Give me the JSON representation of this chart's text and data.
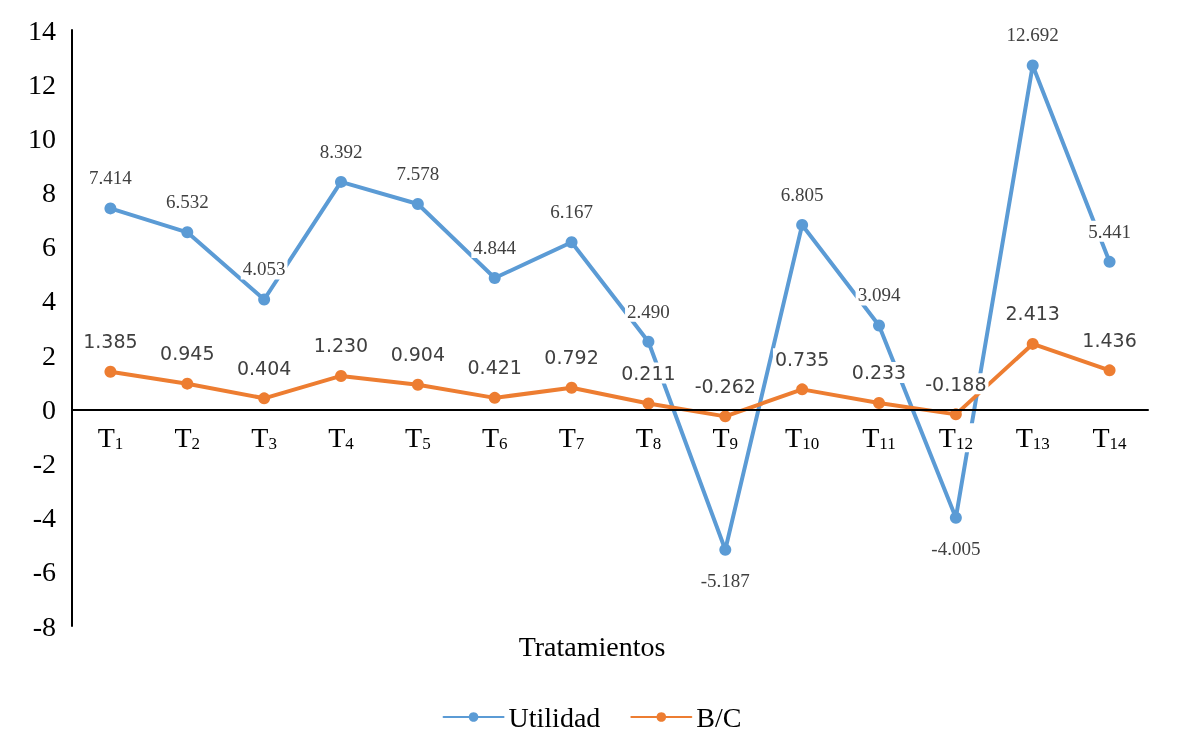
{
  "chart_data": {
    "type": "line",
    "xlabel": "Tratamientos",
    "categories": [
      "T$_{1}$",
      "T$_{2}$",
      "T$_{3}$",
      "T$_{4}$",
      "T$_{5}$",
      "T$_{6}$",
      "T$_{7}$",
      "T$_{8}$",
      "T$_{9}$",
      "T$_{10}$",
      "T$_{11}$",
      "T$_{12}$",
      "T$_{13}$",
      "T$_{14}$"
    ],
    "series": [
      {
        "name": "Utilidad",
        "color": "#5b9bd5",
        "values": [
          7.414,
          6.532,
          4.053,
          8.392,
          7.578,
          4.844,
          6.167,
          2.49,
          -5.187,
          6.805,
          3.094,
          -4.005,
          12.692,
          5.441
        ],
        "value_labels": [
          "7.414",
          "6.532",
          "4.053",
          "8.392",
          "7.578",
          "4.844",
          "6.167",
          "2.490",
          "-5.187",
          "6.805",
          "3.094",
          "-4.005",
          "12.692",
          "5.441"
        ]
      },
      {
        "name": "B/C",
        "color": "#ed7d31",
        "values": [
          1.385,
          0.945,
          0.404,
          1.23,
          0.904,
          0.421,
          0.792,
          0.211,
          -0.262,
          0.735,
          0.233,
          -0.188,
          2.413,
          1.436
        ],
        "value_labels": [
          "1.385",
          "0.945",
          "0.404",
          "1.230",
          "0.904",
          "0.421",
          "0.792",
          "0.211",
          "-0.262",
          "0.735",
          "0.233",
          "-0.188",
          "2.413",
          "1.436"
        ]
      }
    ],
    "ylim": [
      -8,
      14
    ],
    "yticks": [
      -8,
      -6,
      -4,
      -2,
      0,
      2,
      4,
      6,
      8,
      10,
      12,
      14
    ],
    "grid": false,
    "legend": "bottom",
    "marker": "circle",
    "line_style": "solid"
  }
}
